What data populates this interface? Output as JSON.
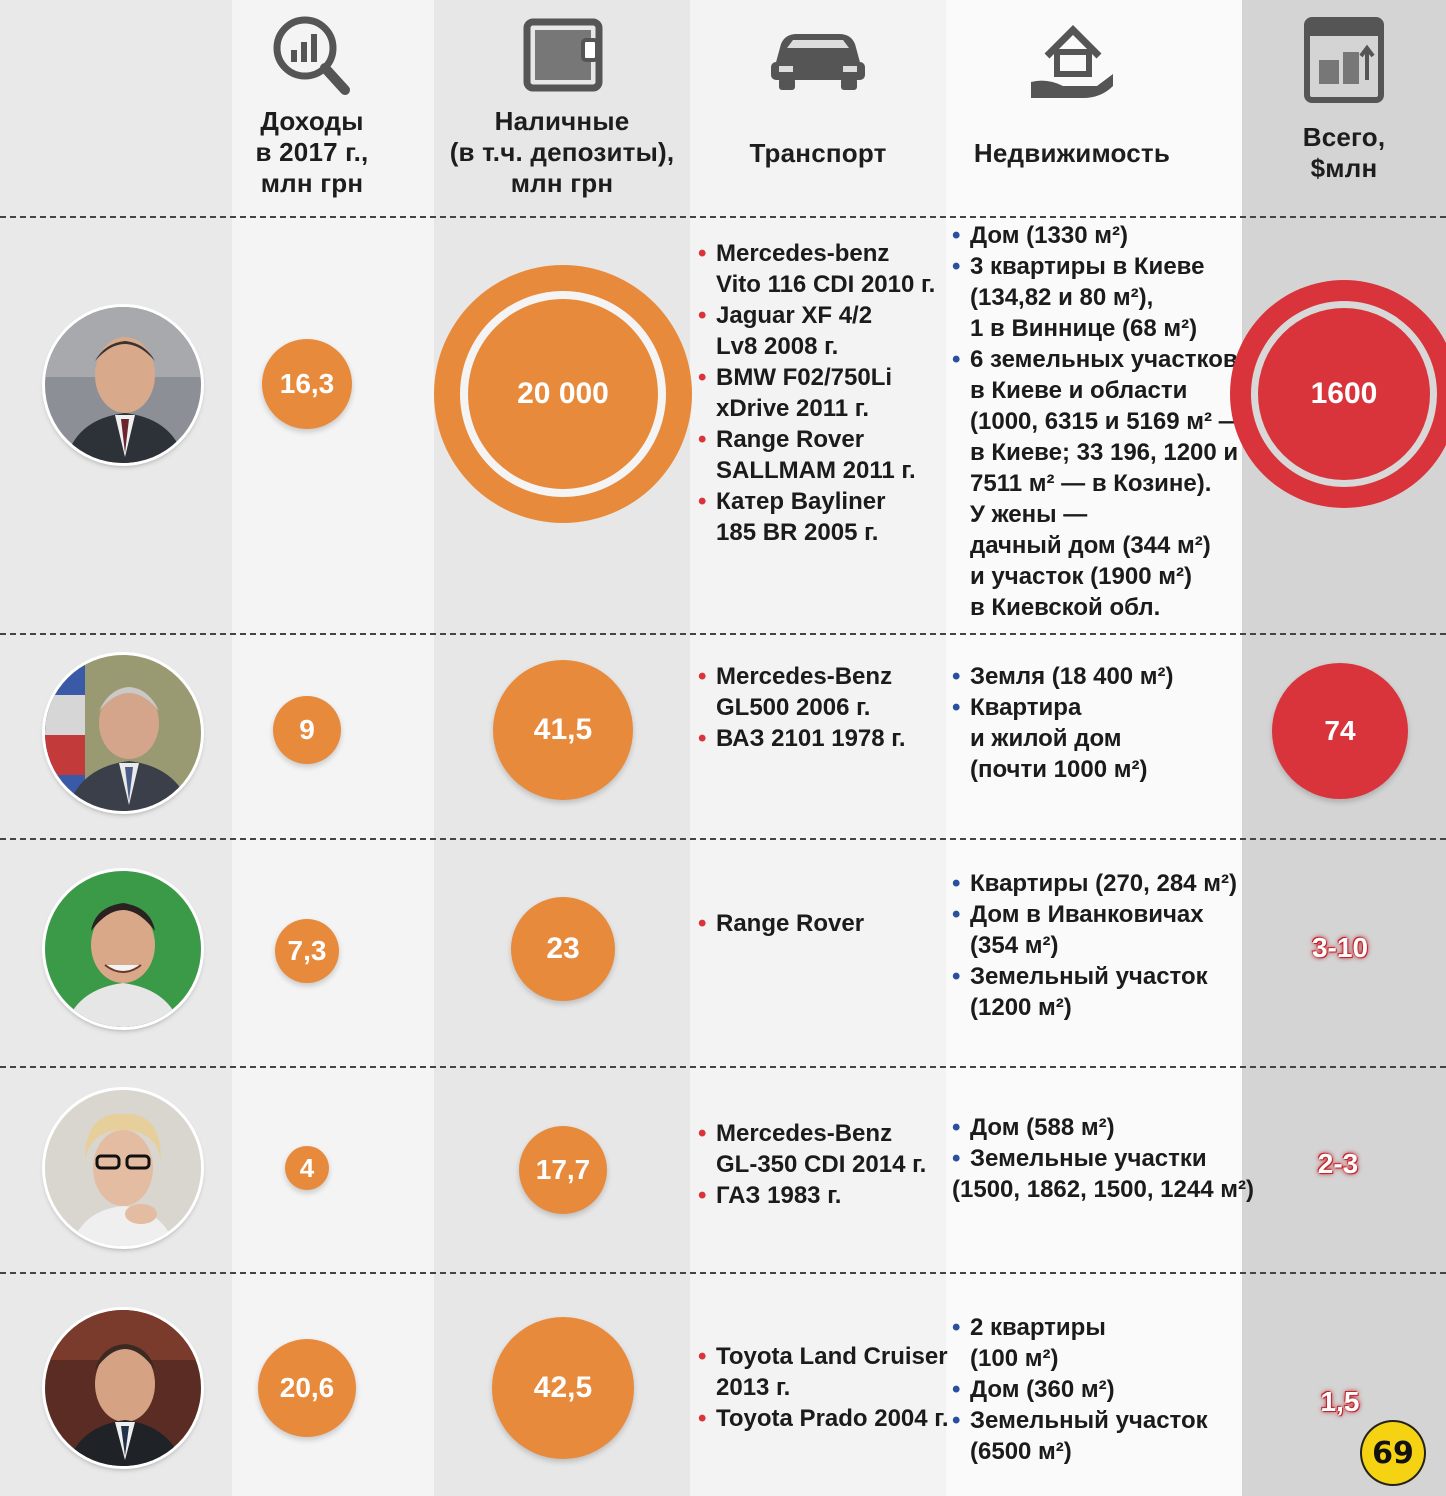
{
  "headers": {
    "income": "Доходы\nв 2017 г.,\nмлн грн",
    "cash": "Наличные\n(в т.ч. депозиты),\nмлн грн",
    "transport": "Транспорт",
    "realty": "Недвижимость",
    "total": "Всего,\n$млн"
  },
  "icons": {
    "income": "magnifier-chart-icon",
    "cash": "wallet-icon",
    "transport": "car-icon",
    "realty": "house-hand-icon",
    "total": "calendar-coins-icon"
  },
  "colors": {
    "orange": "#e88a3c",
    "red": "#d9343b",
    "bullet_transport": "#d9343b",
    "bullet_realty": "#2a4f9e",
    "logo": "#f5d312"
  },
  "rows": [
    {
      "income": "16,3",
      "cash": "20 000",
      "transport": [
        "Mercedes-benz\nVito 116 CDI 2010 г.",
        "Jaguar XF 4/2\nLv8 2008 г.",
        "BMW F02/750Li\nxDrive 2011 г.",
        "Range Rover\nSALLMAM 2011 г.",
        "Катер Bayliner\n185 BR 2005 г."
      ],
      "realty": [
        "Дом (1330 м²)",
        "3 квартиры в Киеве\n(134,82 и 80 м²),\n1 в Виннице (68 м²)",
        "6 земельных участков\nв Киеве и области\n(1000, 6315 и 5169 м² —\nв Киеве; 33 196, 1200 и\n7511 м² — в Козине).\nУ жены —\nдачный дом (344 м²)\nи участок (1900 м²)\nв Киевской обл."
      ],
      "total": "1600"
    },
    {
      "income": "9",
      "cash": "41,5",
      "transport": [
        "Mercedes-Benz\nGL500 2006 г.",
        "ВАЗ 2101 1978 г."
      ],
      "realty": [
        "Земля (18 400 м²)",
        "Квартира\nи жилой дом\n(почти 1000 м²)"
      ],
      "total": "74"
    },
    {
      "income": "7,3",
      "cash": "23",
      "transport": [
        "Range Rover"
      ],
      "realty": [
        "Квартиры (270, 284 м²)",
        "Дом в Иванковичах\n(354 м²)",
        "Земельный участок\n(1200 м²)"
      ],
      "total": "3-10"
    },
    {
      "income": "4",
      "cash": "17,7",
      "transport": [
        "Mercedes-Benz\nGL-350 CDI 2014 г.",
        "ГАЗ 1983 г."
      ],
      "realty": [
        "Дом (588 м²)",
        "Земельные участки"
      ],
      "realty_note": "(1500, 1862, 1500, 1244 м²)",
      "total": "2-3"
    },
    {
      "income": "20,6",
      "cash": "42,5",
      "transport": [
        "Toyota Land Cruiser\n2013 г.",
        "Toyota Prado 2004 г."
      ],
      "realty": [
        "2 квартиры\n(100 м²)",
        "Дом (360 м²)",
        "Земельный участок\n(6500 м²)"
      ],
      "total": "1,5"
    }
  ],
  "chart_data": {
    "type": "table",
    "columns": [
      "Доходы в 2017 г., млн грн",
      "Наличные (в т.ч. депозиты), млн грн",
      "Транспорт",
      "Недвижимость",
      "Всего, $млн"
    ],
    "series": [
      {
        "values": [
          "16,3",
          "20 000",
          "1600"
        ]
      },
      {
        "values": [
          "9",
          "41,5",
          "74"
        ]
      },
      {
        "values": [
          "7,3",
          "23",
          "3-10"
        ]
      },
      {
        "values": [
          "4",
          "17,7",
          "2-3"
        ]
      },
      {
        "values": [
          "20,6",
          "42,5",
          "1,5"
        ]
      }
    ]
  },
  "logo_text": "69"
}
